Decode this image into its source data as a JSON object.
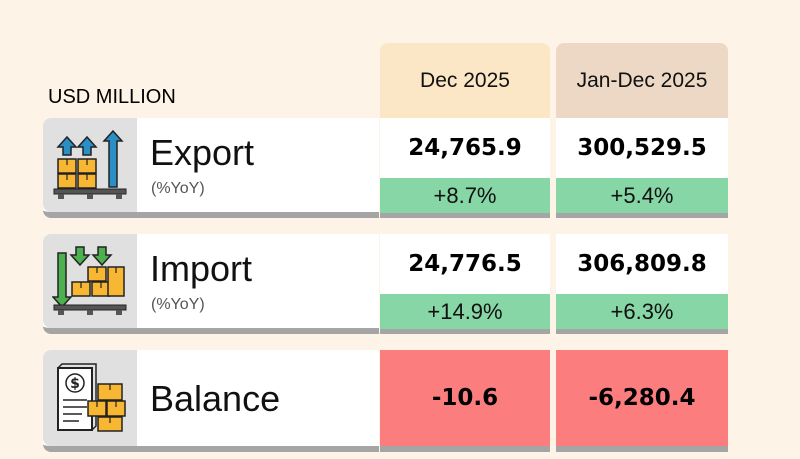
{
  "unit_label": "USD MILLION",
  "columns": [
    "Dec 2025",
    "Jan-Dec 2025"
  ],
  "rows": [
    {
      "label": "Export",
      "sublabel": "(%YoY)",
      "icon": "export-boxes-arrows-up-icon",
      "values": [
        "24,765.9",
        "300,529.5"
      ],
      "yoy": [
        "+8.7%",
        "+5.4%"
      ]
    },
    {
      "label": "Import",
      "sublabel": "(%YoY)",
      "icon": "import-boxes-arrows-down-icon",
      "values": [
        "24,776.5",
        "306,809.8"
      ],
      "yoy": [
        "+14.9%",
        "+6.3%"
      ]
    },
    {
      "label": "Balance",
      "icon": "invoice-boxes-icon",
      "values": [
        "-10.6",
        "-6,280.4"
      ]
    }
  ],
  "colors": {
    "background": "#fdf3e7",
    "dec_header": "#fbe6c5",
    "year_header": "#ecd8c5",
    "positive": "#86d6a6",
    "negative": "#fc7d7d",
    "icon_orange": "#f7b733",
    "icon_blue": "#2b8fc5",
    "icon_green": "#4caf50"
  }
}
